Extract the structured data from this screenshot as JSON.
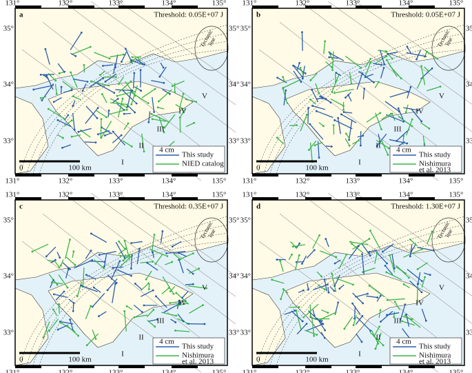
{
  "panels": [
    {
      "label": "a",
      "threshold": "Threshold: 0.05E+07 J",
      "legend": {
        "scale": "4 cm",
        "items": [
          [
            "This study"
          ],
          [
            "NIED catalog"
          ]
        ]
      }
    },
    {
      "label": "b",
      "threshold": "Threshold: 0.05E+07 J",
      "legend": {
        "scale": "4 cm",
        "items": [
          [
            "This study"
          ],
          [
            "Nishimura",
            "et al. 2013"
          ]
        ]
      }
    },
    {
      "label": "c",
      "threshold": "Threshold: 0.35E+07 J",
      "legend": {
        "scale": "4 cm",
        "items": [
          [
            "This study"
          ],
          [
            "Nishimura",
            "et al. 2013"
          ]
        ]
      }
    },
    {
      "label": "d",
      "threshold": "Threshold: 1.30E+07 J",
      "legend": {
        "scale": "4 cm",
        "items": [
          [
            "This study"
          ],
          [
            "Nishimura",
            "et al. 2013"
          ]
        ]
      }
    }
  ],
  "longitudes": [
    "131°",
    "132°",
    "133°",
    "134°",
    "135°"
  ],
  "latitudes": [
    "35°",
    "34°",
    "33°"
  ],
  "regions": [
    "I",
    "II",
    "III",
    "IV",
    "V"
  ],
  "scale_bar": {
    "start": "0",
    "end": "100 km"
  },
  "tectonic_line": [
    "Tectonic",
    "line"
  ]
}
